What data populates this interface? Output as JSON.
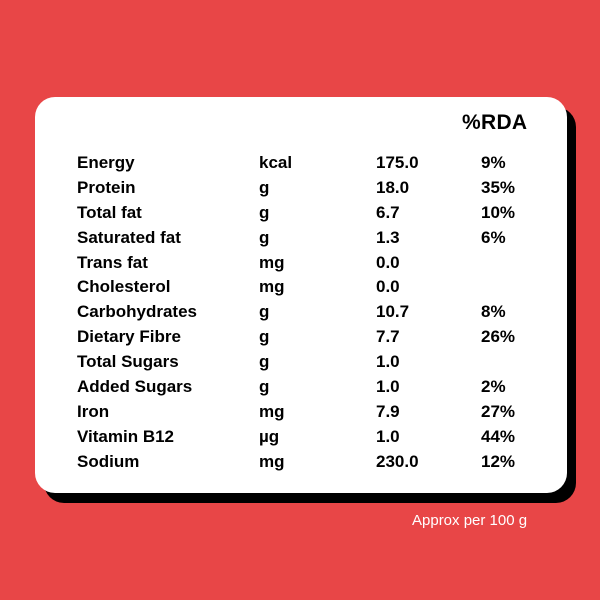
{
  "header": {
    "rda_label": "%RDA"
  },
  "nutrients": [
    {
      "name": "Energy",
      "unit": "kcal",
      "value": "175.0",
      "rda": "9%"
    },
    {
      "name": "Protein",
      "unit": "g",
      "value": "18.0",
      "rda": "35%"
    },
    {
      "name": "Total fat",
      "unit": "g",
      "value": "6.7",
      "rda": "10%"
    },
    {
      "name": "Saturated fat",
      "unit": "g",
      "value": "1.3",
      "rda": "6%"
    },
    {
      "name": "Trans fat",
      "unit": "mg",
      "value": "0.0",
      "rda": ""
    },
    {
      "name": "Cholesterol",
      "unit": "mg",
      "value": "0.0",
      "rda": ""
    },
    {
      "name": "Carbohydrates",
      "unit": "g",
      "value": "10.7",
      "rda": "8%"
    },
    {
      "name": "Dietary Fibre",
      "unit": "g",
      "value": "7.7",
      "rda": "26%"
    },
    {
      "name": "Total Sugars",
      "unit": "g",
      "value": "1.0",
      "rda": ""
    },
    {
      "name": "Added Sugars",
      "unit": "g",
      "value": "1.0",
      "rda": "2%"
    },
    {
      "name": "Iron",
      "unit": "mg",
      "value": "7.9",
      "rda": "27%"
    },
    {
      "name": "Vitamin B12",
      "unit": "µg",
      "value": "1.0",
      "rda": "44%"
    },
    {
      "name": "Sodium",
      "unit": "mg",
      "value": "230.0",
      "rda": "12%"
    }
  ],
  "footnote": "Approx per 100 g",
  "colors": {
    "background": "#e84647",
    "card": "#ffffff",
    "shadow": "#000000",
    "text": "#000000",
    "footnote": "#ffffff"
  }
}
